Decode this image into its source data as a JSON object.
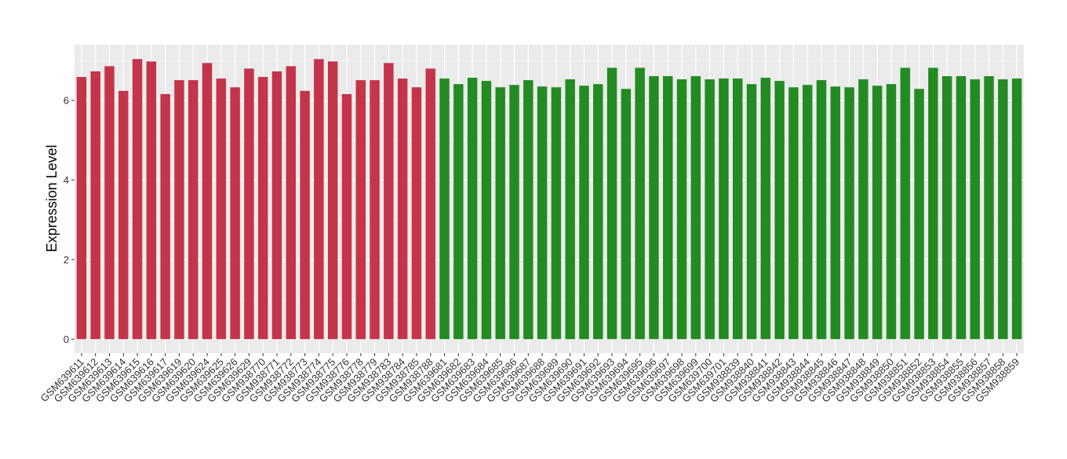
{
  "chart_data": {
    "type": "bar",
    "y_label": "Expression Level",
    "categories": [
      "GSM639611",
      "GSM639612",
      "GSM639613",
      "GSM639614",
      "GSM639615",
      "GSM639616",
      "GSM639617",
      "GSM639619",
      "GSM639620",
      "GSM639624",
      "GSM639625",
      "GSM639626",
      "GSM639629",
      "GSM938770",
      "GSM938771",
      "GSM938772",
      "GSM938773",
      "GSM938774",
      "GSM938775",
      "GSM938776",
      "GSM938778",
      "GSM938779",
      "GSM938783",
      "GSM938784",
      "GSM938785",
      "GSM938788",
      "GSM639681",
      "GSM639682",
      "GSM639683",
      "GSM639684",
      "GSM639685",
      "GSM639686",
      "GSM639687",
      "GSM639688",
      "GSM639689",
      "GSM639690",
      "GSM639691",
      "GSM639692",
      "GSM639693",
      "GSM639694",
      "GSM639695",
      "GSM639696",
      "GSM639697",
      "GSM639698",
      "GSM639699",
      "GSM639700",
      "GSM639701",
      "GSM938839",
      "GSM938840",
      "GSM938841",
      "GSM938842",
      "GSM938843",
      "GSM938844",
      "GSM938845",
      "GSM938846",
      "GSM938847",
      "GSM938848",
      "GSM938849",
      "GSM938850",
      "GSM938851",
      "GSM938852",
      "GSM938853",
      "GSM938854",
      "GSM938855",
      "GSM938856",
      "GSM938857",
      "GSM938858",
      "GSM938859"
    ],
    "values": [
      6.59,
      6.73,
      6.86,
      6.24,
      7.04,
      6.98,
      6.16,
      6.51,
      6.51,
      6.94,
      6.55,
      6.33,
      6.8,
      6.59,
      6.73,
      6.86,
      6.24,
      7.04,
      6.98,
      6.16,
      6.51,
      6.51,
      6.94,
      6.55,
      6.33,
      6.8,
      6.55,
      6.41,
      6.57,
      6.49,
      6.33,
      6.39,
      6.51,
      6.35,
      6.33,
      6.53,
      6.37,
      6.41,
      6.82,
      6.29,
      6.82,
      6.61,
      6.61,
      6.53,
      6.61,
      6.53,
      6.55,
      6.55,
      6.41,
      6.57,
      6.49,
      6.33,
      6.39,
      6.51,
      6.35,
      6.33,
      6.53,
      6.37,
      6.41,
      6.82,
      6.29,
      6.82,
      6.61,
      6.61,
      6.53,
      6.61,
      6.53,
      6.55
    ],
    "colors": [
      "#c4344a",
      "#c4344a",
      "#c4344a",
      "#c4344a",
      "#c4344a",
      "#c4344a",
      "#c4344a",
      "#c4344a",
      "#c4344a",
      "#c4344a",
      "#c4344a",
      "#c4344a",
      "#c4344a",
      "#c4344a",
      "#c4344a",
      "#c4344a",
      "#c4344a",
      "#c4344a",
      "#c4344a",
      "#c4344a",
      "#c4344a",
      "#c4344a",
      "#c4344a",
      "#c4344a",
      "#c4344a",
      "#c4344a",
      "#228b22",
      "#228b22",
      "#228b22",
      "#228b22",
      "#228b22",
      "#228b22",
      "#228b22",
      "#228b22",
      "#228b22",
      "#228b22",
      "#228b22",
      "#228b22",
      "#228b22",
      "#228b22",
      "#228b22",
      "#228b22",
      "#228b22",
      "#228b22",
      "#228b22",
      "#228b22",
      "#228b22",
      "#228b22",
      "#228b22",
      "#228b22",
      "#228b22",
      "#228b22",
      "#228b22",
      "#228b22",
      "#228b22",
      "#228b22",
      "#228b22",
      "#228b22",
      "#228b22",
      "#228b22",
      "#228b22",
      "#228b22",
      "#228b22",
      "#228b22",
      "#228b22",
      "#228b22",
      "#228b22",
      "#228b22"
    ],
    "ylim": [
      -0.35,
      7.4
    ],
    "yticks": [
      0,
      2,
      4,
      6
    ],
    "grid": true
  }
}
